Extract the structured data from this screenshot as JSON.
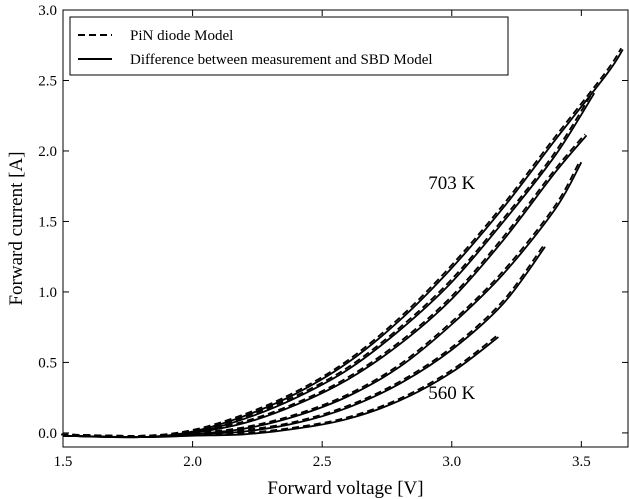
{
  "chart_data": {
    "type": "line",
    "title": "",
    "xlabel": "Forward voltage [V]",
    "ylabel": "Forward current [A]",
    "xlim": [
      1.5,
      3.68
    ],
    "ylim": [
      -0.1,
      3.0
    ],
    "x_ticks": [
      1.5,
      2.0,
      2.5,
      3.0,
      3.5
    ],
    "x_tick_labels": [
      "1.5",
      "2.0",
      "2.5",
      "3.0",
      "3.5"
    ],
    "y_ticks": [
      0.0,
      0.5,
      1.0,
      1.5,
      2.0,
      2.5,
      3.0
    ],
    "y_tick_labels": [
      "0.0",
      "0.5",
      "1.0",
      "1.5",
      "2.0",
      "2.5",
      "3.0"
    ],
    "grid": false,
    "legend": {
      "placement": "top-left",
      "entries": [
        {
          "label": "PiN diode Model",
          "style": "dashed"
        },
        {
          "label": "Difference between measurement and SBD Model",
          "style": "solid"
        }
      ]
    },
    "annotations": [
      {
        "text": "703 K",
        "x": 3.0,
        "y": 1.73
      },
      {
        "text": "560 K",
        "x": 3.0,
        "y": 0.24
      }
    ],
    "series": [
      {
        "temperature_order": 1,
        "x": [
          1.5,
          1.8,
          2.0,
          2.2,
          2.4,
          2.6,
          2.8,
          3.0,
          3.2,
          3.4,
          3.6,
          3.66
        ],
        "y": [
          -0.02,
          -0.03,
          0.01,
          0.12,
          0.28,
          0.5,
          0.8,
          1.17,
          1.6,
          2.08,
          2.55,
          2.72
        ]
      },
      {
        "temperature_order": 2,
        "x": [
          1.5,
          1.8,
          2.0,
          2.2,
          2.4,
          2.6,
          2.8,
          3.0,
          3.2,
          3.4,
          3.55
        ],
        "y": [
          -0.02,
          -0.03,
          0.0,
          0.1,
          0.25,
          0.45,
          0.73,
          1.07,
          1.5,
          1.97,
          2.41
        ]
      },
      {
        "temperature_order": 3,
        "x": [
          1.5,
          1.8,
          2.0,
          2.2,
          2.4,
          2.6,
          2.8,
          3.0,
          3.2,
          3.4,
          3.52
        ],
        "y": [
          -0.02,
          -0.03,
          0.0,
          0.07,
          0.2,
          0.38,
          0.63,
          0.95,
          1.37,
          1.85,
          2.11
        ]
      },
      {
        "temperature_order": 4,
        "x": [
          1.5,
          1.8,
          2.0,
          2.2,
          2.4,
          2.6,
          2.8,
          3.0,
          3.2,
          3.4,
          3.5
        ],
        "y": [
          -0.02,
          -0.03,
          -0.01,
          0.03,
          0.12,
          0.26,
          0.47,
          0.77,
          1.13,
          1.59,
          1.92
        ]
      },
      {
        "temperature_order": 5,
        "x": [
          1.5,
          1.8,
          2.0,
          2.2,
          2.4,
          2.6,
          2.8,
          3.0,
          3.2,
          3.36
        ],
        "y": [
          -0.02,
          -0.03,
          -0.01,
          0.01,
          0.07,
          0.18,
          0.35,
          0.59,
          0.92,
          1.32
        ]
      },
      {
        "temperature_order": 6,
        "x": [
          1.5,
          1.8,
          2.0,
          2.2,
          2.4,
          2.6,
          2.8,
          3.0,
          3.18
        ],
        "y": [
          -0.02,
          -0.03,
          -0.02,
          -0.01,
          0.03,
          0.1,
          0.23,
          0.43,
          0.68
        ]
      }
    ]
  }
}
